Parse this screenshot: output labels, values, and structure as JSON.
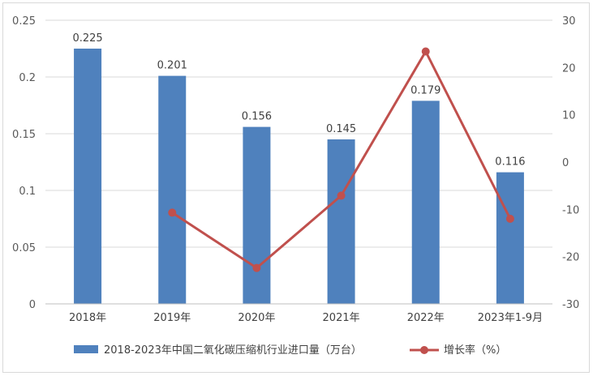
{
  "chart_data": {
    "type": "bar+line",
    "categories": [
      "2018年",
      "2019年",
      "2020年",
      "2021年",
      "2022年",
      "2023年1-9月"
    ],
    "series": [
      {
        "name": "2018-2023年中国二氧化碳压缩机行业进口量（万台）",
        "type": "bar",
        "axis": "left",
        "values": [
          0.225,
          0.201,
          0.156,
          0.145,
          0.179,
          0.116
        ],
        "labels": [
          "0.225",
          "0.201",
          "0.156",
          "0.145",
          "0.179",
          "0.116"
        ],
        "color": "#4f81bd"
      },
      {
        "name": "增长率（%）",
        "type": "line",
        "axis": "right",
        "values": [
          null,
          -10.7,
          -22.4,
          -7.1,
          23.4,
          -12.0
        ],
        "color": "#c0504d"
      }
    ],
    "y_left": {
      "lim": [
        0,
        0.25
      ],
      "ticks": [
        "0",
        "0.05",
        "0.1",
        "0.15",
        "0.2",
        "0.25"
      ],
      "tick_values": [
        0,
        0.05,
        0.1,
        0.15,
        0.2,
        0.25
      ]
    },
    "y_right": {
      "lim": [
        -30,
        30
      ],
      "ticks": [
        "-30",
        "-20",
        "-10",
        "0",
        "10",
        "20",
        "30"
      ],
      "tick_values": [
        -30,
        -20,
        -10,
        0,
        10,
        20,
        30
      ]
    },
    "grid": true,
    "legend_position": "bottom"
  }
}
